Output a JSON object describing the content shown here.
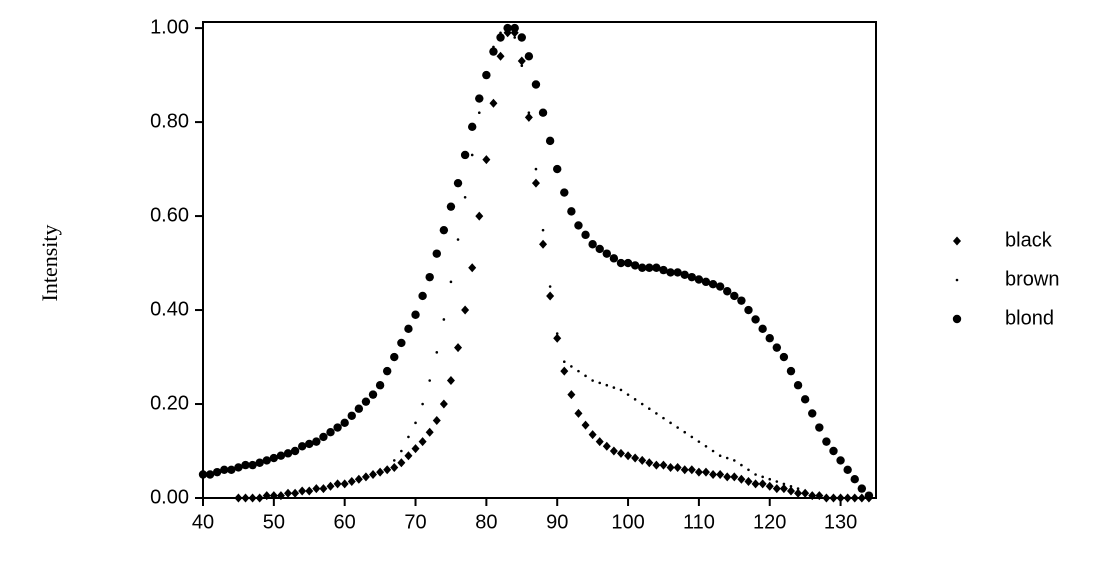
{
  "chart_data": {
    "type": "scatter",
    "y_label": "Intensity",
    "xlim": [
      40,
      135
    ],
    "ylim": [
      0,
      1.013
    ],
    "xticks": [
      40,
      50,
      60,
      70,
      80,
      90,
      100,
      110,
      120,
      130
    ],
    "yticks": [
      {
        "value": 0,
        "label": "0.00"
      },
      {
        "value": 0.2,
        "label": "0.20"
      },
      {
        "value": 0.4,
        "label": "0.40"
      },
      {
        "value": 0.6,
        "label": "0.60"
      },
      {
        "value": 0.8,
        "label": "0.80"
      },
      {
        "value": 1.0,
        "label": "1.00"
      }
    ],
    "x": [
      40,
      41,
      42,
      43,
      44,
      45,
      46,
      47,
      48,
      49,
      50,
      51,
      52,
      53,
      54,
      55,
      56,
      57,
      58,
      59,
      60,
      61,
      62,
      63,
      64,
      65,
      66,
      67,
      68,
      69,
      70,
      71,
      72,
      73,
      74,
      75,
      76,
      77,
      78,
      79,
      80,
      81,
      82,
      83,
      84,
      85,
      86,
      87,
      88,
      89,
      90,
      91,
      92,
      93,
      94,
      95,
      96,
      97,
      98,
      99,
      100,
      101,
      102,
      103,
      104,
      105,
      106,
      107,
      108,
      109,
      110,
      111,
      112,
      113,
      114,
      115,
      116,
      117,
      118,
      119,
      120,
      121,
      122,
      123,
      124,
      125,
      126,
      127,
      128,
      129,
      130,
      131,
      132,
      133,
      134
    ],
    "series": [
      {
        "name": "blond",
        "color": "#000000",
        "marker": "circle",
        "values": [
          0.05,
          0.05,
          0.055,
          0.06,
          0.06,
          0.065,
          0.07,
          0.07,
          0.075,
          0.08,
          0.085,
          0.09,
          0.095,
          0.1,
          0.11,
          0.115,
          0.12,
          0.13,
          0.14,
          0.15,
          0.16,
          0.175,
          0.19,
          0.205,
          0.22,
          0.24,
          0.27,
          0.3,
          0.33,
          0.36,
          0.39,
          0.43,
          0.47,
          0.52,
          0.57,
          0.62,
          0.67,
          0.73,
          0.79,
          0.85,
          0.9,
          0.95,
          0.98,
          1.0,
          1.0,
          0.98,
          0.94,
          0.88,
          0.82,
          0.76,
          0.7,
          0.65,
          0.61,
          0.58,
          0.56,
          0.54,
          0.53,
          0.52,
          0.51,
          0.5,
          0.5,
          0.495,
          0.49,
          0.49,
          0.49,
          0.485,
          0.48,
          0.48,
          0.475,
          0.47,
          0.465,
          0.46,
          0.455,
          0.45,
          0.44,
          0.43,
          0.42,
          0.4,
          0.38,
          0.36,
          0.34,
          0.32,
          0.3,
          0.27,
          0.24,
          0.21,
          0.18,
          0.15,
          0.12,
          0.1,
          0.08,
          0.06,
          0.04,
          0.02,
          0.005
        ]
      },
      {
        "name": "black",
        "color": "#000000",
        "marker": "plus",
        "values": [
          null,
          null,
          null,
          null,
          null,
          0.0,
          0.0,
          0.0,
          0.0,
          0.005,
          0.005,
          0.005,
          0.01,
          0.01,
          0.015,
          0.015,
          0.02,
          0.02,
          0.025,
          0.03,
          0.03,
          0.035,
          0.04,
          0.045,
          0.05,
          0.055,
          0.06,
          0.065,
          0.075,
          0.09,
          0.105,
          0.12,
          0.14,
          0.165,
          0.2,
          0.25,
          0.32,
          0.4,
          0.49,
          0.6,
          0.72,
          0.84,
          0.94,
          0.99,
          0.99,
          0.93,
          0.81,
          0.67,
          0.54,
          0.43,
          0.34,
          0.27,
          0.22,
          0.18,
          0.155,
          0.135,
          0.12,
          0.11,
          0.1,
          0.095,
          0.09,
          0.085,
          0.08,
          0.075,
          0.07,
          0.07,
          0.065,
          0.065,
          0.06,
          0.06,
          0.055,
          0.055,
          0.05,
          0.05,
          0.045,
          0.045,
          0.04,
          0.035,
          0.03,
          0.03,
          0.025,
          0.02,
          0.02,
          0.015,
          0.01,
          0.01,
          0.005,
          0.005,
          0.0,
          0.0,
          0.0,
          0.0,
          0.0,
          0.0,
          0.0
        ]
      },
      {
        "name": "brown",
        "color": "#000000",
        "marker": "dot",
        "values": [
          null,
          null,
          null,
          null,
          null,
          null,
          null,
          null,
          null,
          null,
          null,
          null,
          null,
          null,
          null,
          null,
          null,
          null,
          null,
          null,
          null,
          null,
          null,
          null,
          null,
          null,
          0.06,
          0.08,
          0.1,
          0.13,
          0.16,
          0.2,
          0.25,
          0.31,
          0.38,
          0.46,
          0.55,
          0.64,
          0.73,
          0.82,
          0.9,
          0.96,
          0.99,
          1.0,
          0.98,
          0.92,
          0.82,
          0.7,
          0.57,
          0.45,
          0.35,
          0.29,
          0.28,
          0.27,
          0.26,
          0.25,
          0.245,
          0.24,
          0.235,
          0.23,
          0.22,
          0.21,
          0.2,
          0.19,
          0.18,
          0.17,
          0.16,
          0.15,
          0.14,
          0.13,
          0.12,
          0.11,
          0.1,
          0.09,
          0.085,
          0.08,
          0.07,
          0.06,
          0.05,
          0.045,
          0.04,
          0.035,
          0.03,
          0.025,
          0.02,
          0.015,
          0.01,
          0.005,
          null,
          null,
          null,
          null,
          null,
          null,
          null
        ]
      }
    ],
    "legend": "right"
  }
}
